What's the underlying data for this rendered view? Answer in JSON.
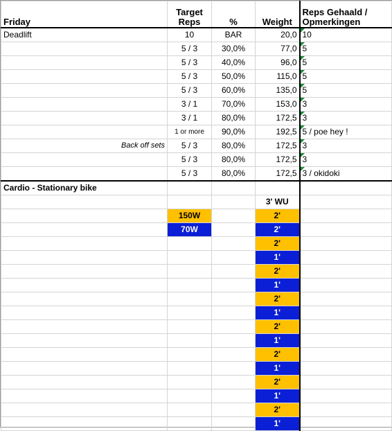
{
  "header": {
    "day": "Friday",
    "col_target": "Target\nReps",
    "col_pct": "%",
    "col_weight": "Weight",
    "col_notes": "Reps Gehaald /\nOpmerkingen"
  },
  "deadlift": {
    "exercise": "Deadlift",
    "backoff_label": "Back off sets",
    "rows": [
      {
        "reps": "10",
        "pct": "BAR",
        "weight": "20,0",
        "note": "10"
      },
      {
        "reps": "5 / 3",
        "pct": "30,0%",
        "weight": "77,0",
        "note": "5"
      },
      {
        "reps": "5 / 3",
        "pct": "40,0%",
        "weight": "96,0",
        "note": "5"
      },
      {
        "reps": "5 / 3",
        "pct": "50,0%",
        "weight": "115,0",
        "note": "5"
      },
      {
        "reps": "5 / 3",
        "pct": "60,0%",
        "weight": "135,0",
        "note": "5"
      },
      {
        "reps": "3 / 1",
        "pct": "70,0%",
        "weight": "153,0",
        "note": "3"
      },
      {
        "reps": "3 / 1",
        "pct": "80,0%",
        "weight": "172,5",
        "note": "3"
      },
      {
        "reps": "1 or more",
        "pct": "90,0%",
        "weight": "192,5",
        "note": "5 / poe hey !"
      },
      {
        "reps": "5 / 3",
        "pct": "80,0%",
        "weight": "172,5",
        "note": "3"
      },
      {
        "reps": "5 / 3",
        "pct": "80,0%",
        "weight": "172,5",
        "note": "3"
      },
      {
        "reps": "5 / 3",
        "pct": "80,0%",
        "weight": "172,5",
        "note": "3 / okidoki"
      }
    ]
  },
  "cardio": {
    "title": "Cardio - Stationary bike",
    "warmup": "3' WU",
    "legend_high": "150W",
    "legend_low": "70W",
    "intervals": [
      "2'",
      "2'",
      "2'",
      "1'",
      "2'",
      "1'",
      "2'",
      "1'",
      "2'",
      "1'",
      "2'",
      "1'",
      "2'",
      "1'",
      "2'",
      "1'"
    ]
  },
  "colors": {
    "high": "#ffc000",
    "low": "#0b1fd6",
    "flag": "#1b8a3a"
  }
}
